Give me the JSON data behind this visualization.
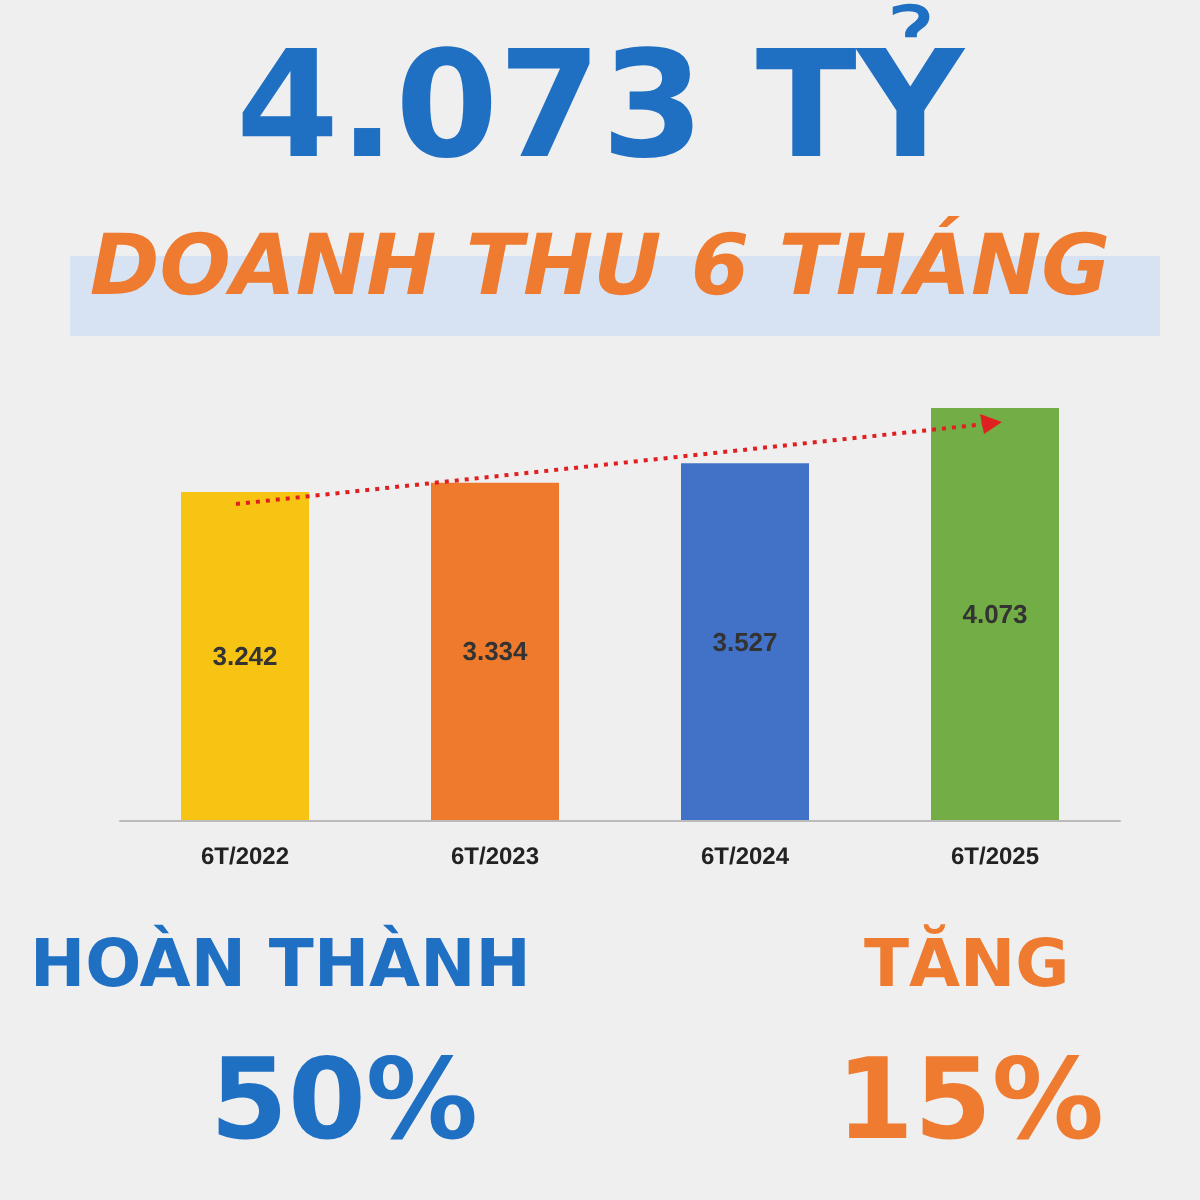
{
  "chart_data": {
    "type": "bar",
    "title": "4.073 TỶ",
    "subtitle": "DOANH THU 6 THÁNG",
    "categories": [
      "6T/2022",
      "6T/2023",
      "6T/2024",
      "6T/2025"
    ],
    "values": [
      3.242,
      3.334,
      3.527,
      4.073
    ],
    "colors": [
      "#f8c414",
      "#ef7a2c",
      "#4272c8",
      "#72ae45"
    ],
    "data_labels": true,
    "annotations": [
      "HOÀN THÀNH",
      "50%",
      "TĂNG",
      "15%"
    ]
  }
}
